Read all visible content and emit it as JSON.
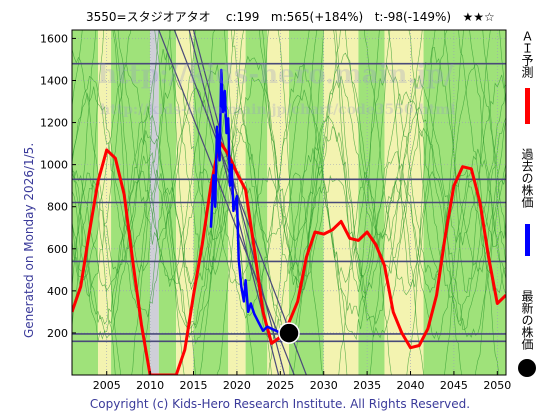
{
  "header": {
    "code_name": "3550=スタジオアタオ",
    "current": "c:199",
    "m_value": "m:565(+184%)",
    "t_value": "t:-98(-149%)",
    "stars": "★★☆"
  },
  "generated": "Generated on Monday 2026/1/5.",
  "copyright": "Copyright (c) Kids-Hero Research Institute. All Rights Reserved.",
  "watermark": {
    "line1": "http://kids-hero.main.jp/",
    "line2": "http://kids-hero.main.jp/chart/code3550.html"
  },
  "legend": {
    "ai_forecast": "ＡＩ予測",
    "past_price": "過去の株価",
    "latest_price": "最新の株価"
  },
  "colors": {
    "ai_forecast": "#ff0000",
    "past_price": "#0000ff",
    "latest_price": "#000000",
    "band_green": "#9fe27a",
    "band_yellow": "#f3f3b0",
    "band_gray": "#cfcfd8",
    "trendline": "#4a4a7a"
  },
  "chart_data": {
    "type": "line",
    "xlim": [
      2001,
      2051
    ],
    "ylim": [
      0,
      1640
    ],
    "x_ticks": [
      2005,
      2010,
      2015,
      2020,
      2025,
      2030,
      2035,
      2040,
      2045,
      2050
    ],
    "y_ticks": [
      200,
      400,
      600,
      800,
      1000,
      1200,
      1400,
      1600
    ],
    "grid": true,
    "series": [
      {
        "name": "ＡＩ予測",
        "x": [
          2001,
          2002,
          2003,
          2004,
          2005,
          2006,
          2007,
          2008,
          2009,
          2010,
          2011,
          2012,
          2013,
          2014,
          2015,
          2016,
          2017,
          2018,
          2019,
          2020,
          2021,
          2022,
          2023,
          2024,
          2025,
          2026,
          2027,
          2028,
          2029,
          2030,
          2031,
          2032,
          2033,
          2034,
          2035,
          2036,
          2037,
          2038,
          2039,
          2040,
          2041,
          2042,
          2043,
          2044,
          2045,
          2046,
          2047,
          2048,
          2049,
          2050,
          2051
        ],
        "y": [
          300,
          420,
          680,
          920,
          1070,
          1030,
          860,
          540,
          240,
          0,
          0,
          0,
          0,
          120,
          380,
          620,
          900,
          1110,
          1050,
          960,
          880,
          600,
          300,
          150,
          180,
          250,
          350,
          560,
          680,
          670,
          690,
          730,
          650,
          640,
          680,
          620,
          520,
          300,
          200,
          130,
          140,
          220,
          380,
          660,
          900,
          990,
          980,
          820,
          560,
          340,
          380
        ]
      },
      {
        "name": "過去の株価",
        "x": [
          2017.0,
          2017.3,
          2017.5,
          2017.7,
          2018.0,
          2018.2,
          2018.4,
          2018.6,
          2018.8,
          2019.0,
          2019.2,
          2019.4,
          2019.6,
          2019.8,
          2020.0,
          2020.2,
          2020.5,
          2020.8,
          2021.0,
          2021.3,
          2021.6,
          2022.0,
          2022.5,
          2023.0,
          2023.5,
          2024.0,
          2024.5,
          2025.0,
          2025.5,
          2026.0
        ],
        "y": [
          700,
          950,
          800,
          1180,
          1020,
          1450,
          1250,
          1350,
          1150,
          1220,
          900,
          1000,
          780,
          820,
          850,
          550,
          420,
          350,
          450,
          300,
          340,
          290,
          250,
          210,
          230,
          220,
          210,
          200,
          205,
          199
        ]
      }
    ],
    "latest_point": {
      "x": 2026,
      "y": 199
    },
    "horizontal_lines": [
      1480,
      930,
      820,
      540,
      195,
      160
    ],
    "trend_lines": [
      {
        "x1": 2011.0,
        "y1": 1640,
        "x2": 2026.6,
        "y2": 0
      },
      {
        "x1": 2012.8,
        "y1": 1640,
        "x2": 2028.0,
        "y2": 0
      },
      {
        "x1": 2015.0,
        "y1": 1640,
        "x2": 2025.5,
        "y2": 0
      },
      {
        "x1": 2014.5,
        "y1": 1640,
        "x2": 2024.8,
        "y2": 0
      }
    ],
    "bands": [
      {
        "from": 2001,
        "to": 2004,
        "color": "band_green"
      },
      {
        "from": 2004,
        "to": 2005.5,
        "color": "band_yellow"
      },
      {
        "from": 2005.5,
        "to": 2010,
        "color": "band_green"
      },
      {
        "from": 2010,
        "to": 2011,
        "color": "band_gray"
      },
      {
        "from": 2011,
        "to": 2013,
        "color": "band_green"
      },
      {
        "from": 2013,
        "to": 2015,
        "color": "band_yellow"
      },
      {
        "from": 2015,
        "to": 2019,
        "color": "band_green"
      },
      {
        "from": 2019,
        "to": 2021,
        "color": "band_yellow"
      },
      {
        "from": 2021,
        "to": 2023.5,
        "color": "band_green"
      },
      {
        "from": 2023.5,
        "to": 2026,
        "color": "band_yellow"
      },
      {
        "from": 2026,
        "to": 2030,
        "color": "band_green"
      },
      {
        "from": 2030,
        "to": 2034,
        "color": "band_yellow"
      },
      {
        "from": 2034,
        "to": 2037,
        "color": "band_green"
      },
      {
        "from": 2037,
        "to": 2041.5,
        "color": "band_yellow"
      },
      {
        "from": 2041.5,
        "to": 2051,
        "color": "band_green"
      }
    ]
  }
}
